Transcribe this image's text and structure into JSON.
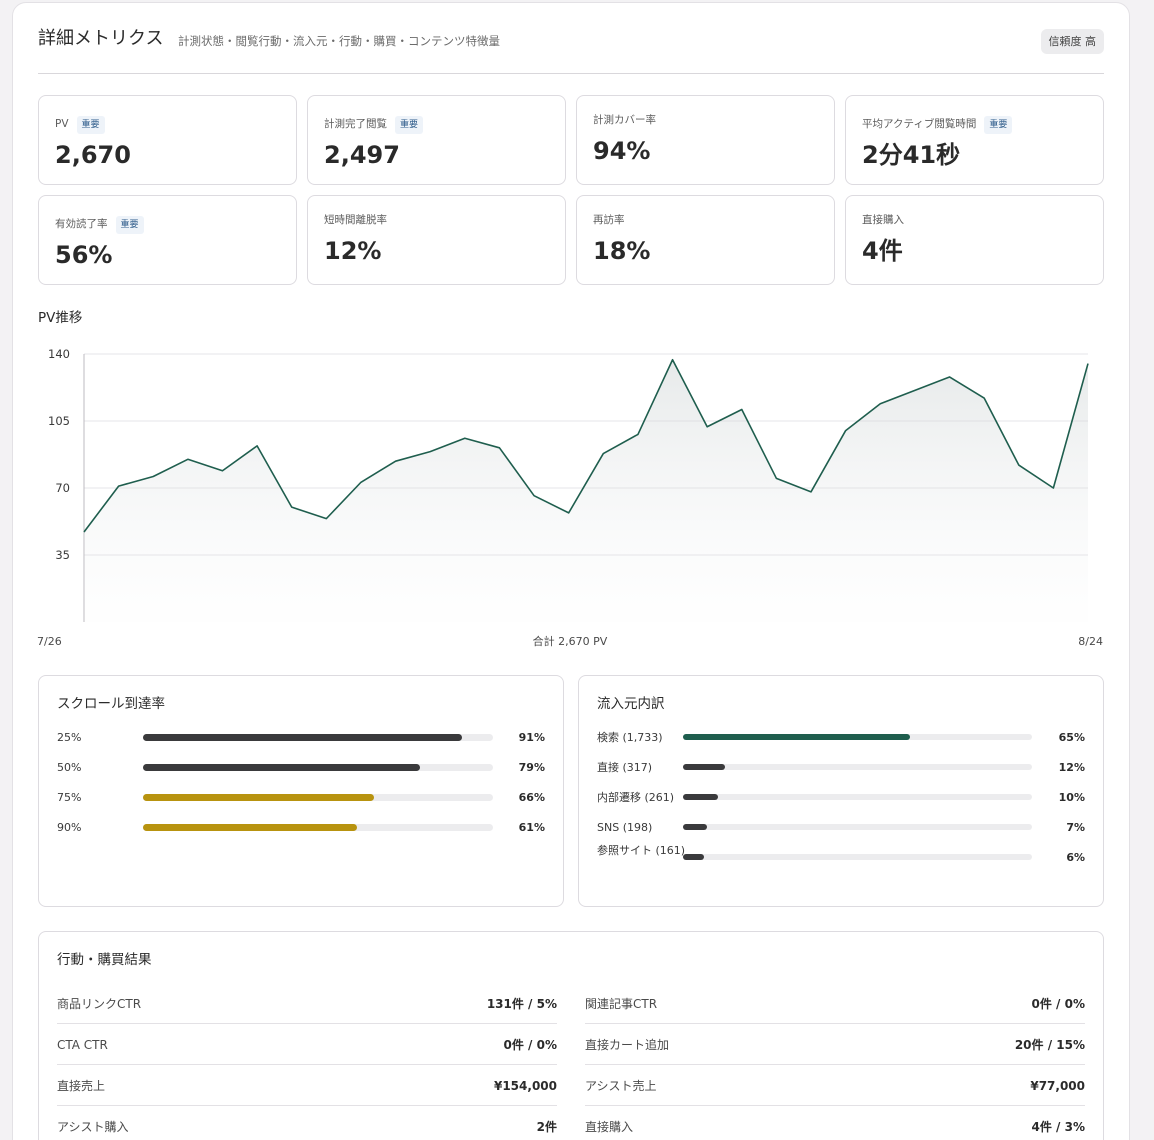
{
  "header": {
    "title": "詳細メトリクス",
    "subtitle": "計測状態・閲覧行動・流入元・行動・購買・コンテンツ特徴量",
    "badge": "信頼度 高"
  },
  "kpis": [
    {
      "label": "PV",
      "tag": "重要",
      "value": "2,670"
    },
    {
      "label": "計測完了閲覧",
      "tag": "重要",
      "value": "2,497"
    },
    {
      "label": "計測カバー率",
      "tag": "",
      "value": "94%"
    },
    {
      "label": "平均アクティブ閲覧時間",
      "tag": "重要",
      "value": "2分41秒"
    },
    {
      "label": "有効読了率",
      "tag": "重要",
      "value": "56%"
    },
    {
      "label": "短時間離脱率",
      "tag": "",
      "value": "12%"
    },
    {
      "label": "再訪率",
      "tag": "",
      "value": "18%"
    },
    {
      "label": "直接購入",
      "tag": "",
      "value": "4件"
    }
  ],
  "pv_section": {
    "title": "PV推移"
  },
  "chart_data": {
    "type": "area",
    "title": "PV推移",
    "x_start_label": "7/26",
    "x_end_label": "8/24",
    "center_label": "合計 2,670 PV",
    "y_ticks": [
      "140",
      "105",
      "70",
      "35"
    ],
    "ylim": [
      0,
      140
    ],
    "grid": true,
    "line_color": "#1f5e4e",
    "series": [
      {
        "values": [
          47,
          71,
          76,
          85,
          79,
          92,
          60,
          54,
          73,
          84,
          89,
          96,
          91,
          66,
          57,
          88,
          98,
          137,
          102,
          111,
          75,
          68,
          100,
          114,
          121,
          128,
          117,
          82,
          70,
          135
        ]
      }
    ]
  },
  "scroll": {
    "title": "スクロール到達率",
    "rows": [
      {
        "label": "25%",
        "value": "91%",
        "pct": 91,
        "color": "#3a3a3c"
      },
      {
        "label": "50%",
        "value": "79%",
        "pct": 79,
        "color": "#3a3a3c"
      },
      {
        "label": "75%",
        "value": "66%",
        "pct": 66,
        "color": "#b8930f"
      },
      {
        "label": "90%",
        "value": "61%",
        "pct": 61,
        "color": "#b8930f"
      }
    ]
  },
  "sources": {
    "title": "流入元内訳",
    "rows": [
      {
        "label": "検索 (1,733)",
        "value": "65%",
        "pct": 65,
        "color": "#1f5e4e"
      },
      {
        "label": "直接 (317)",
        "value": "12%",
        "pct": 12,
        "color": "#3a3a3c"
      },
      {
        "label": "内部遷移 (261)",
        "value": "10%",
        "pct": 10,
        "color": "#3a3a3c"
      },
      {
        "label": "SNS (198)",
        "value": "7%",
        "pct": 7,
        "color": "#3a3a3c"
      },
      {
        "label": "参照サイト (161)",
        "value": "6%",
        "pct": 6,
        "color": "#3a3a3c"
      }
    ]
  },
  "results": {
    "title": "行動・購買結果",
    "left": [
      {
        "label": "商品リンクCTR",
        "value": "131件 / 5%"
      },
      {
        "label": "CTA CTR",
        "value": "0件 / 0%"
      },
      {
        "label": "直接売上",
        "value": "¥154,000"
      },
      {
        "label": "アシスト購入",
        "value": "2件"
      }
    ],
    "right": [
      {
        "label": "関連記事CTR",
        "value": "0件 / 0%"
      },
      {
        "label": "直接カート追加",
        "value": "20件 / 15%"
      },
      {
        "label": "アシスト売上",
        "value": "¥77,000"
      },
      {
        "label": "直接購入",
        "value": "4件 / 3%"
      }
    ]
  }
}
